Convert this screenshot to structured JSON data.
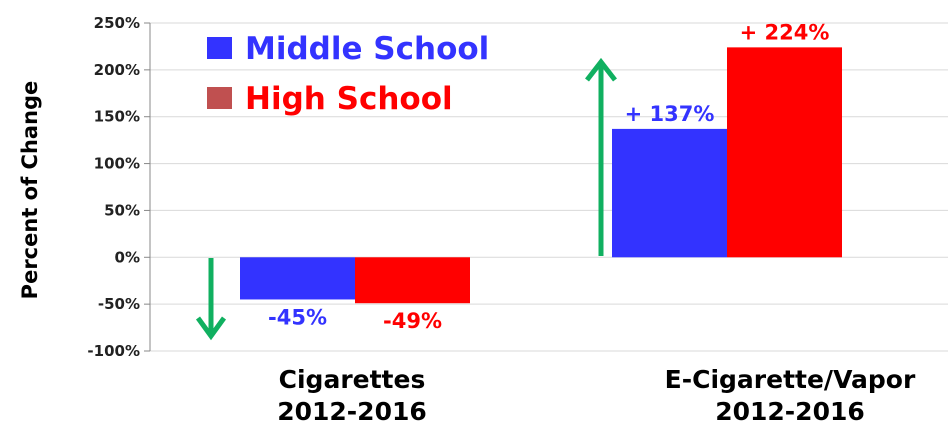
{
  "chart_data": {
    "type": "bar",
    "categories": [
      "Cigarettes",
      "E-Cigarette/Vapor"
    ],
    "category_sublabels": [
      "2012-2016",
      "2012-2016"
    ],
    "series": [
      {
        "name": "Middle School",
        "color": "#3333FF",
        "values": [
          -45,
          137
        ],
        "labels": [
          "-45%",
          "+ 137%"
        ]
      },
      {
        "name": "High School",
        "color": "#FF0000",
        "values": [
          -49,
          224
        ],
        "labels": [
          "-49%",
          "+ 224%"
        ]
      }
    ],
    "ylabel": "Percent of Change",
    "ylim": [
      -100,
      250
    ],
    "yticks": [
      250,
      200,
      150,
      100,
      50,
      0,
      -50,
      -100
    ],
    "ytick_labels": [
      "250%",
      "200%",
      "150%",
      "100%",
      "50%",
      "0%",
      "-50%",
      "-100%"
    ],
    "grid": true,
    "legend_position": "top-left",
    "legend_swatch_colors": [
      "#3333FF",
      "#C05050"
    ],
    "trend_arrow_color": "#10B060",
    "trend_arrows": [
      "down-arrow-icon",
      "up-arrow-icon"
    ]
  }
}
